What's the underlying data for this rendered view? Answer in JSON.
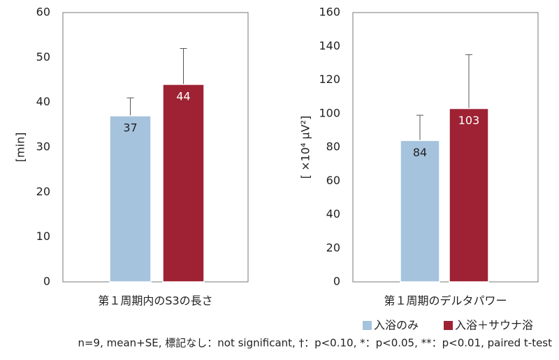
{
  "chart_data": [
    {
      "type": "bar",
      "xlabel": "第１周期内のS3の長さ",
      "ylabel": "[min]",
      "ylim": [
        0,
        60
      ],
      "yticks": [
        0,
        10,
        20,
        30,
        40,
        50,
        60
      ],
      "series": [
        {
          "name": "入浴のみ",
          "color": "#a6c3de",
          "values": [
            37
          ],
          "errors": [
            4
          ]
        },
        {
          "name": "入浴＋サウナ浴",
          "color": "#9e2233",
          "values": [
            44
          ],
          "errors": [
            8
          ]
        }
      ]
    },
    {
      "type": "bar",
      "xlabel": "第１周期のデルタパワー",
      "ylabel": "[ ×10⁴ μV²]",
      "ylim": [
        0,
        160
      ],
      "yticks": [
        0,
        20,
        40,
        60,
        80,
        100,
        120,
        140,
        160
      ],
      "series": [
        {
          "name": "入浴のみ",
          "color": "#a6c3de",
          "values": [
            84
          ],
          "errors": [
            15
          ]
        },
        {
          "name": "入浴＋サウナ浴",
          "color": "#9e2233",
          "values": [
            103
          ],
          "errors": [
            32
          ]
        }
      ]
    }
  ],
  "note": "n=9, mean+SE, 標記なし：not significant, †：p<0.10, *：p<0.05, **：p<0.01, paired t-test"
}
